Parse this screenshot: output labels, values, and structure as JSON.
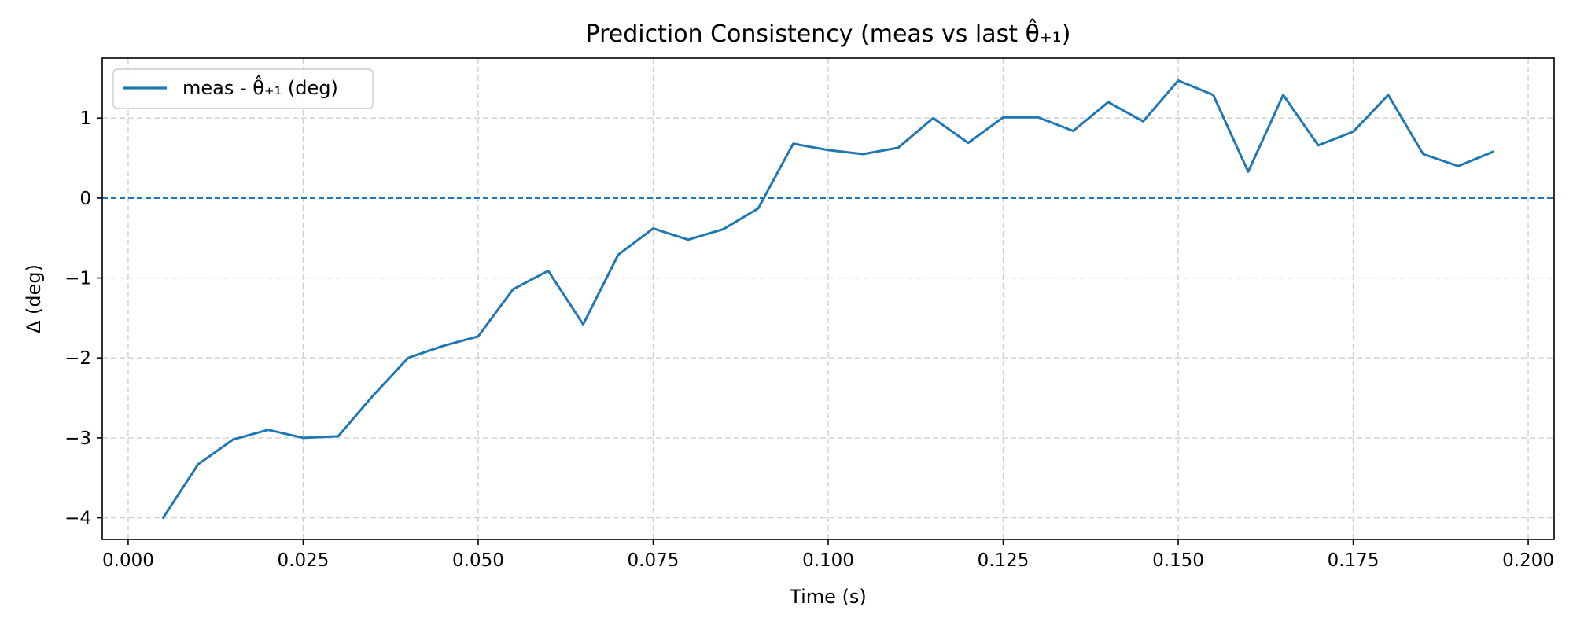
{
  "chart_data": {
    "type": "line",
    "title": "Prediction Consistency (meas vs last θ̂₊₁)",
    "xlabel": "Time (s)",
    "ylabel": "Δ (deg)",
    "xlim": [
      -0.0037,
      0.2037
    ],
    "ylim": [
      -4.27,
      1.75
    ],
    "xticks": [
      0.0,
      0.025,
      0.05,
      0.075,
      0.1,
      0.125,
      0.15,
      0.175,
      0.2
    ],
    "xtick_labels": [
      "0.000",
      "0.025",
      "0.050",
      "0.075",
      "0.100",
      "0.125",
      "0.150",
      "0.175",
      "0.200"
    ],
    "yticks": [
      -4,
      -3,
      -2,
      -1,
      0,
      1
    ],
    "ytick_labels": [
      "−4",
      "−3",
      "−2",
      "−1",
      "0",
      "1"
    ],
    "grid": true,
    "legend_position": "top-left",
    "reference_line": {
      "y": 0,
      "style": "dashed",
      "color": "#1f77b4"
    },
    "series": [
      {
        "name": "meas - θ̂₊₁ (deg)",
        "color": "#1f77b4",
        "x": [
          0.005,
          0.01,
          0.015,
          0.02,
          0.025,
          0.03,
          0.035,
          0.04,
          0.045,
          0.05,
          0.055,
          0.06,
          0.065,
          0.07,
          0.075,
          0.08,
          0.085,
          0.09,
          0.095,
          0.1,
          0.105,
          0.11,
          0.115,
          0.12,
          0.125,
          0.13,
          0.135,
          0.14,
          0.145,
          0.15,
          0.155,
          0.16,
          0.165,
          0.17,
          0.175,
          0.18,
          0.185,
          0.19,
          0.195
        ],
        "y": [
          -4.0,
          -3.33,
          -3.02,
          -2.9,
          -3.0,
          -2.98,
          -2.47,
          -2.0,
          -1.85,
          -1.73,
          -1.14,
          -0.91,
          -1.58,
          -0.71,
          -0.38,
          -0.52,
          -0.39,
          -0.13,
          0.68,
          0.6,
          0.55,
          0.63,
          1.0,
          0.69,
          1.01,
          1.01,
          0.84,
          1.2,
          0.96,
          1.47,
          1.29,
          0.33,
          1.29,
          0.66,
          0.83,
          1.29,
          0.55,
          0.4,
          0.58
        ]
      }
    ]
  }
}
